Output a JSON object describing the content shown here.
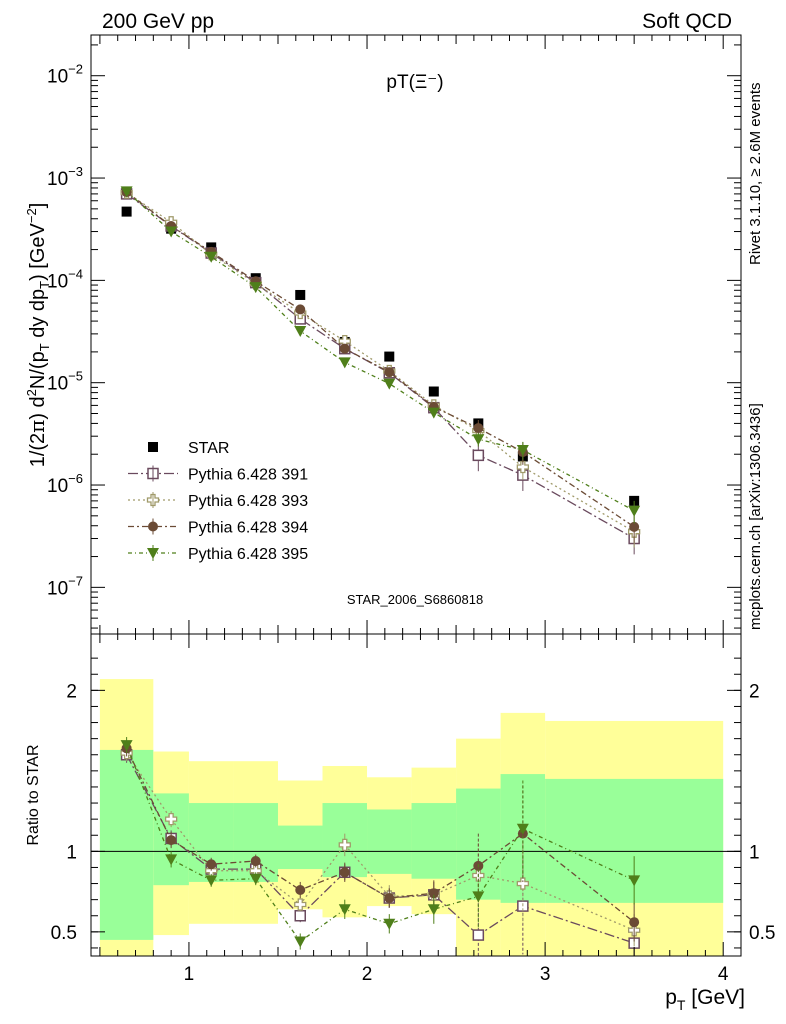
{
  "header": {
    "left": "200 GeV pp",
    "right": "Soft QCD"
  },
  "side_labels": {
    "rivet": "Rivet 3.1.10, ≥ 2.6M events",
    "mcplots": "mcplots.cern.ch [arXiv:1306.3436]"
  },
  "colors": {
    "STAR": "#000000",
    "py391": "#6a4a5e",
    "py393": "#a09a6a",
    "py394": "#6b4b35",
    "py395": "#4f7f1a",
    "band_inner": "#99ff99",
    "band_outer": "#ffff99",
    "watermark": "#a6a6a6"
  },
  "chart_data": [
    {
      "type": "scatter",
      "title": "pT(Ξ⁻)",
      "watermark": "STAR_2006_S6860818",
      "ylabel": "1/(2π) d²N/(pT dy dpT) [GeV⁻²]",
      "yscale": "log",
      "ylim": [
        3.5e-08,
        0.025
      ],
      "xlim": [
        0.45,
        4.1
      ],
      "y_ticks": [
        {
          "v": 1e-07,
          "b": "10",
          "e": "−7"
        },
        {
          "v": 1e-06,
          "b": "10",
          "e": "−6"
        },
        {
          "v": 1e-05,
          "b": "10",
          "e": "−5"
        },
        {
          "v": 0.0001,
          "b": "10",
          "e": "−4"
        },
        {
          "v": 0.001,
          "b": "10",
          "e": "−3"
        },
        {
          "v": 0.01,
          "b": "10",
          "e": "−2"
        }
      ],
      "x": [
        0.65,
        0.9,
        1.125,
        1.375,
        1.625,
        1.875,
        2.125,
        2.375,
        2.625,
        2.875,
        3.5
      ],
      "series": [
        {
          "name": "STAR",
          "key": "STAR",
          "marker": "square-filled",
          "values": [
            0.00047,
            0.00032,
            0.00021,
            0.000105,
            7.2e-05,
            2.5e-05,
            1.8e-05,
            8.2e-06,
            4e-06,
            1.9e-06,
            7e-07
          ]
        },
        {
          "name": "Pythia 6.428 391",
          "key": "py391",
          "marker": "square-open",
          "dash": "10,3,2,3",
          "values": [
            0.0007,
            0.00034,
            0.000185,
            9.5e-05,
            4.2e-05,
            2.15e-05,
            1.25e-05,
            5.7e-06,
            1.95e-06,
            1.25e-06,
            3e-07
          ],
          "errors": [
            0.05,
            0.05,
            0.05,
            0.05,
            0.06,
            0.07,
            0.08,
            0.1,
            0.3,
            0.3,
            0.3
          ]
        },
        {
          "name": "Pythia 6.428 393",
          "key": "py393",
          "marker": "cross-open",
          "dash": "2,3",
          "values": [
            0.00072,
            0.00037,
            0.00018,
            9.3e-05,
            4.8e-05,
            2.55e-05,
            1.3e-05,
            6e-06,
            3.4e-06,
            1.5e-06,
            3.5e-07
          ],
          "errors": [
            0.05,
            0.05,
            0.05,
            0.05,
            0.06,
            0.07,
            0.08,
            0.1,
            0.2,
            0.25,
            0.3
          ]
        },
        {
          "name": "Pythia 6.428 394",
          "key": "py394",
          "marker": "circle-filled",
          "dash": "6,3,2,3",
          "values": [
            0.00073,
            0.00034,
            0.00019,
            9.8e-05,
            5.2e-05,
            2.15e-05,
            1.27e-05,
            5.8e-06,
            3.6e-06,
            2.1e-06,
            3.9e-07
          ],
          "errors": [
            0.05,
            0.05,
            0.05,
            0.05,
            0.06,
            0.07,
            0.08,
            0.1,
            0.2,
            0.25,
            0.3
          ]
        },
        {
          "name": "Pythia 6.428 395",
          "key": "py395",
          "marker": "triangle-down-filled",
          "dash": "4,3,1,3",
          "values": [
            0.00074,
            0.0003,
            0.00017,
            8.6e-05,
            3.2e-05,
            1.58e-05,
            9.8e-06,
            5.1e-06,
            2.8e-06,
            2.2e-06,
            5.6e-07
          ],
          "errors": [
            0.05,
            0.05,
            0.05,
            0.05,
            0.06,
            0.07,
            0.08,
            0.1,
            0.15,
            0.2,
            0.25
          ]
        }
      ]
    },
    {
      "type": "scatter",
      "ylabel": "Ratio to STAR",
      "xlabel": "pT [GeV]",
      "xlim": [
        0.45,
        4.1
      ],
      "ylim": [
        0.35,
        2.35
      ],
      "reference_line": 1,
      "x_ticks": [
        1,
        2,
        3,
        4
      ],
      "y_ticks": [
        0.5,
        1,
        2
      ],
      "bins": [
        {
          "lo": 0.5,
          "hi": 0.8,
          "in_lo": 0.45,
          "in_hi": 1.63,
          "out_lo": 0.3,
          "out_hi": 2.07
        },
        {
          "lo": 0.8,
          "hi": 1.0,
          "in_lo": 0.79,
          "in_hi": 1.36,
          "out_lo": 0.48,
          "out_hi": 1.62
        },
        {
          "lo": 1.0,
          "hi": 1.25,
          "in_lo": 0.81,
          "in_hi": 1.3,
          "out_lo": 0.55,
          "out_hi": 1.56
        },
        {
          "lo": 1.25,
          "hi": 1.5,
          "in_lo": 0.81,
          "in_hi": 1.3,
          "out_lo": 0.55,
          "out_hi": 1.56
        },
        {
          "lo": 1.5,
          "hi": 1.75,
          "in_lo": 0.89,
          "in_hi": 1.16,
          "out_lo": 0.64,
          "out_hi": 1.44
        },
        {
          "lo": 1.75,
          "hi": 2.0,
          "in_lo": 0.84,
          "in_hi": 1.3,
          "out_lo": 0.59,
          "out_hi": 1.53
        },
        {
          "lo": 2.0,
          "hi": 2.25,
          "in_lo": 0.86,
          "in_hi": 1.26,
          "out_lo": 0.66,
          "out_hi": 1.46
        },
        {
          "lo": 2.25,
          "hi": 2.5,
          "in_lo": 0.83,
          "in_hi": 1.3,
          "out_lo": 0.61,
          "out_hi": 1.52
        },
        {
          "lo": 2.5,
          "hi": 2.75,
          "in_lo": 0.7,
          "in_hi": 1.39,
          "out_lo": 0.3,
          "out_hi": 1.7
        },
        {
          "lo": 2.75,
          "hi": 3.0,
          "in_lo": 0.68,
          "in_hi": 1.48,
          "out_lo": 0.3,
          "out_hi": 1.86
        },
        {
          "lo": 3.0,
          "hi": 4.0,
          "in_lo": 0.68,
          "in_hi": 1.45,
          "out_lo": 0.3,
          "out_hi": 1.81
        }
      ],
      "x": [
        0.65,
        0.9,
        1.125,
        1.375,
        1.625,
        1.875,
        2.125,
        2.375,
        2.625,
        2.875,
        3.5
      ],
      "series": [
        {
          "name": "Pythia 6.428 391",
          "key": "py391",
          "marker": "square-open",
          "dash": "10,3,2,3",
          "values": [
            1.6,
            1.08,
            0.89,
            0.89,
            0.6,
            0.87,
            0.71,
            0.73,
            0.48,
            0.66,
            0.43
          ],
          "errors": [
            0.05,
            0.05,
            0.04,
            0.04,
            0.04,
            0.05,
            0.06,
            0.08,
            0.2,
            0.3,
            0.1
          ]
        },
        {
          "name": "Pythia 6.428 393",
          "key": "py393",
          "marker": "cross-open",
          "dash": "2,3",
          "values": [
            1.61,
            1.2,
            0.88,
            0.88,
            0.67,
            1.04,
            0.72,
            0.73,
            0.85,
            0.8,
            0.51
          ],
          "errors": [
            0.05,
            0.05,
            0.04,
            0.04,
            0.04,
            0.07,
            0.07,
            0.08,
            0.2,
            0.25,
            0.1
          ]
        },
        {
          "name": "Pythia 6.428 394",
          "key": "py394",
          "marker": "circle-filled",
          "dash": "6,3,2,3",
          "values": [
            1.64,
            1.07,
            0.92,
            0.94,
            0.76,
            0.87,
            0.71,
            0.74,
            0.91,
            1.11,
            0.56
          ],
          "errors": [
            0.05,
            0.05,
            0.04,
            0.04,
            0.05,
            0.06,
            0.06,
            0.08,
            0.2,
            0.3,
            0.12
          ]
        },
        {
          "name": "Pythia 6.428 395",
          "key": "py395",
          "marker": "triangle-down-filled",
          "dash": "4,3,1,3",
          "values": [
            1.66,
            0.95,
            0.82,
            0.83,
            0.44,
            0.64,
            0.55,
            0.64,
            0.72,
            1.14,
            0.82
          ],
          "errors": [
            0.05,
            0.05,
            0.04,
            0.04,
            0.05,
            0.06,
            0.06,
            0.09,
            0.2,
            0.3,
            0.15
          ]
        }
      ]
    }
  ]
}
